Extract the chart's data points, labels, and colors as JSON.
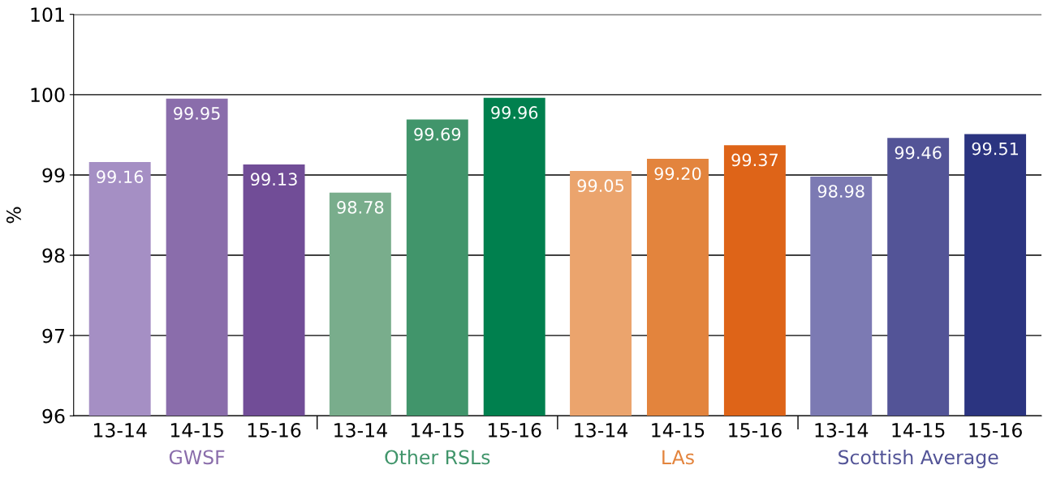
{
  "chart_data": {
    "type": "bar",
    "ylabel": "%",
    "categories": [
      "13-14",
      "14-15",
      "15-16",
      "13-14",
      "14-15",
      "15-16",
      "13-14",
      "14-15",
      "15-16",
      "13-14",
      "14-15",
      "15-16"
    ],
    "values": [
      99.16,
      99.95,
      99.13,
      98.78,
      99.69,
      99.96,
      99.05,
      99.2,
      99.37,
      98.98,
      99.46,
      99.51
    ],
    "value_labels": [
      "99.16",
      "99.95",
      "99.13",
      "98.78",
      "99.69",
      "99.96",
      "99.05",
      "99.20",
      "99.37",
      "98.98",
      "99.46",
      "99.51"
    ],
    "colors": [
      "#a58fc4",
      "#8a6dab",
      "#714d97",
      "#79ad8c",
      "#41956b",
      "#00804e",
      "#eba46d",
      "#e3843d",
      "#de6418",
      "#7c7ab3",
      "#535497",
      "#2b3480"
    ],
    "annotations": [
      "GWSF",
      "Other RSLs",
      "LAs",
      "Scottish Average"
    ],
    "ylim": [
      96,
      101
    ],
    "yticks": [
      96,
      97,
      98,
      99,
      100,
      101
    ],
    "grid": "y"
  }
}
